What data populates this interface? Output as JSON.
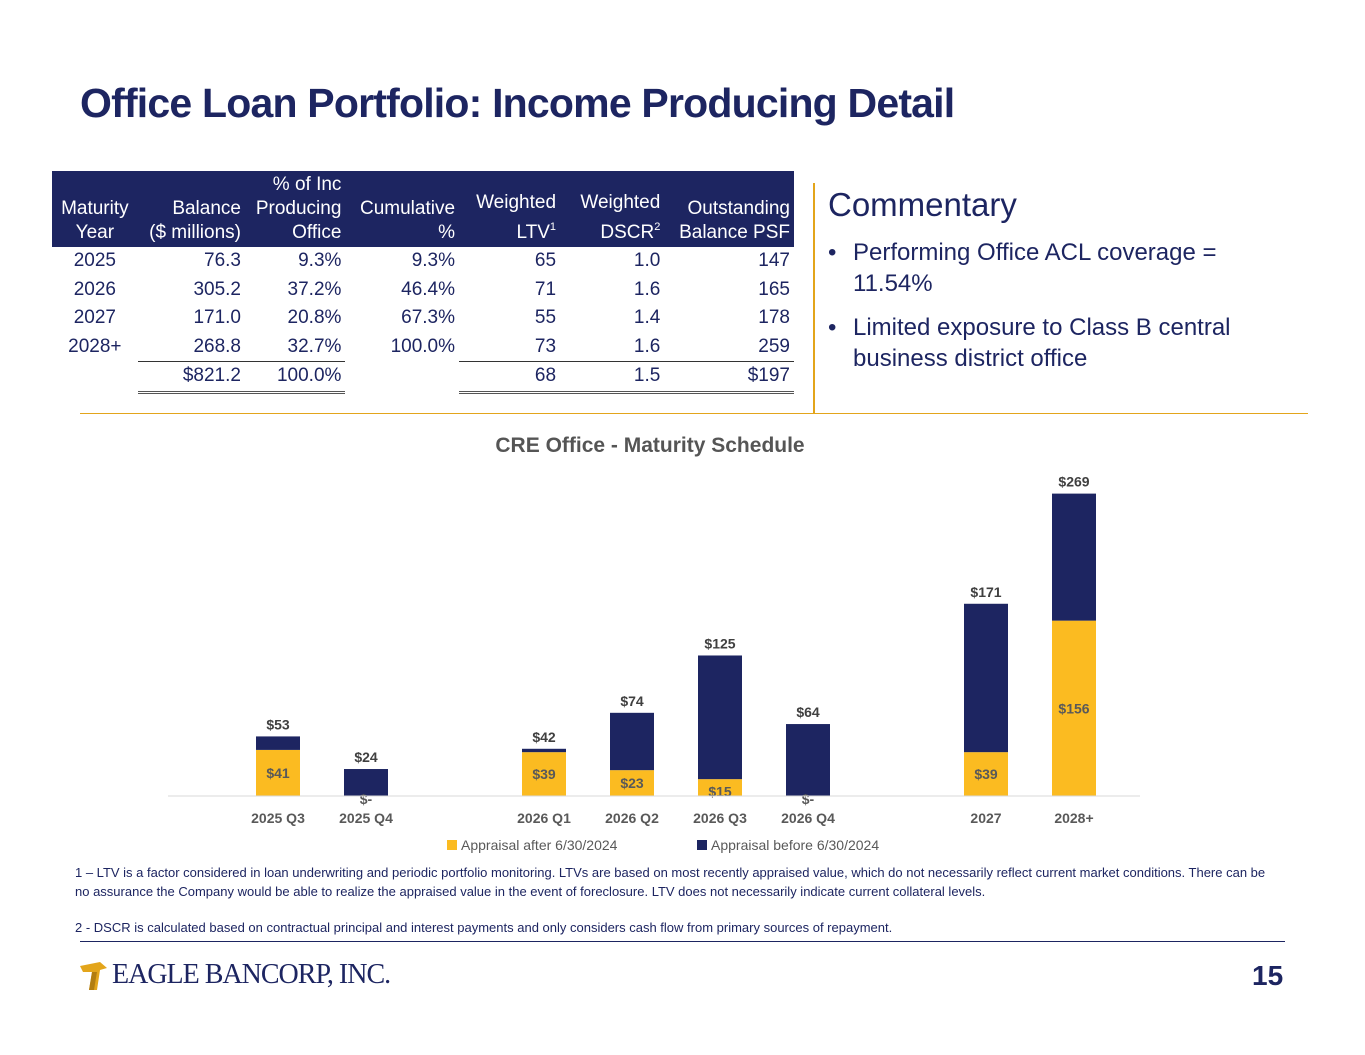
{
  "page": {
    "title": "Office Loan Portfolio: Income Producing Detail",
    "page_number": "15",
    "logo_text": "EAGLE BANCORP, INC."
  },
  "table": {
    "headers": [
      {
        "lines": [
          "",
          "Maturity",
          "Year"
        ],
        "sup": ""
      },
      {
        "lines": [
          "",
          "Balance",
          "($ millions)"
        ],
        "sup": ""
      },
      {
        "lines": [
          "% of Inc",
          "Producing",
          "Office"
        ],
        "sup": ""
      },
      {
        "lines": [
          "",
          "Cumulative",
          "%"
        ],
        "sup": ""
      },
      {
        "lines": [
          "",
          "Weighted",
          "LTV"
        ],
        "sup": "1"
      },
      {
        "lines": [
          "",
          "Weighted",
          "DSCR"
        ],
        "sup": "2"
      },
      {
        "lines": [
          "",
          "Outstanding",
          "Balance PSF"
        ],
        "sup": ""
      }
    ],
    "rows": [
      [
        "2025",
        "76.3",
        "9.3%",
        "9.3%",
        "65",
        "1.0",
        "147"
      ],
      [
        "2026",
        "305.2",
        "37.2%",
        "46.4%",
        "71",
        "1.6",
        "165"
      ],
      [
        "2027",
        "171.0",
        "20.8%",
        "67.3%",
        "55",
        "1.4",
        "178"
      ],
      [
        "2028+",
        "268.8",
        "32.7%",
        "100.0%",
        "73",
        "1.6",
        "259"
      ]
    ],
    "total": [
      "",
      "$821.2",
      "100.0%",
      "",
      "68",
      "1.5",
      "$197"
    ]
  },
  "commentary": {
    "title": "Commentary",
    "bullets": [
      "Performing Office ACL coverage = 11.54%",
      "Limited exposure to Class B central business district office"
    ]
  },
  "chart_data": {
    "type": "bar",
    "stacked": true,
    "title": "CRE Office - Maturity Schedule",
    "categories": [
      "2025 Q3",
      "2025 Q4",
      "2026 Q1",
      "2026 Q2",
      "2026 Q3",
      "2026 Q4",
      "2027",
      "2028+"
    ],
    "groups": [
      [
        0,
        1
      ],
      [
        2,
        3,
        4,
        5
      ],
      [
        6,
        7
      ]
    ],
    "series": [
      {
        "name": "Appraisal after 6/30/2024",
        "color": "#fbbb21",
        "values": [
          41,
          0,
          39,
          23,
          15,
          0,
          39,
          156
        ],
        "labels": [
          "$41",
          "$-",
          "$39",
          "$23",
          "$15",
          "$-",
          "$39",
          "$156"
        ]
      },
      {
        "name": "Appraisal before 6/30/2024",
        "color": "#1d2561",
        "values": [
          12,
          24,
          3,
          51,
          110,
          64,
          132,
          113
        ]
      }
    ],
    "totals": [
      "$53",
      "$24",
      "$42",
      "$74",
      "$125",
      "$64",
      "$171",
      "$269"
    ],
    "ylim": [
      0,
      290
    ],
    "xlabel": "",
    "ylabel": "",
    "legend": "bottom"
  },
  "footnotes": [
    "1 – LTV is a factor considered in loan underwriting and periodic portfolio monitoring. LTVs are based on most recently appraised value, which do not necessarily reflect current market conditions. There can be no assurance the Company would be able to realize the appraised value in the event of foreclosure. LTV does not necessarily indicate current collateral levels.",
    "2 - DSCR is calculated based on contractual principal and interest payments and only considers cash flow from primary sources of repayment."
  ]
}
